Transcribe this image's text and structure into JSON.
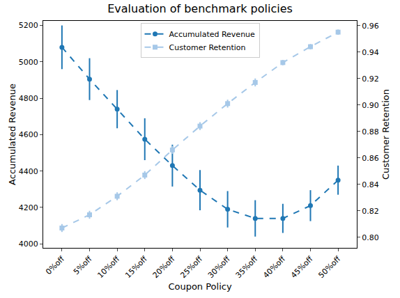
{
  "chart_data": {
    "type": "line",
    "title": "Evaluation of benchmark policies",
    "x_label": "Coupon Policy",
    "y_label": "Accumulated Revenue",
    "y2_label": "Customer Retention",
    "categories": [
      "0%off",
      "5%off",
      "10%off",
      "15%off",
      "20%off",
      "25%off",
      "30%off",
      "35%off",
      "40%off",
      "45%off",
      "50%off"
    ],
    "series": [
      {
        "name": "Accumulated Revenue",
        "color": "#1f77b4",
        "marker": "circle",
        "line_style": "dashed",
        "axis": "y",
        "values": [
          5080,
          4905,
          4740,
          4575,
          4430,
          4295,
          4190,
          4140,
          4140,
          4210,
          4350
        ],
        "error": [
          120,
          115,
          105,
          115,
          115,
          110,
          100,
          100,
          80,
          85,
          80
        ]
      },
      {
        "name": "Customer Retention",
        "color": "#a6c8e8",
        "marker": "square",
        "line_style": "dashed",
        "axis": "y2",
        "values": [
          0.807,
          0.817,
          0.831,
          0.847,
          0.866,
          0.884,
          0.901,
          0.917,
          0.932,
          0.944,
          0.955
        ],
        "error": [
          0.003,
          0.003,
          0.003,
          0.003,
          0.003,
          0.003,
          0.003,
          0.003,
          0.002,
          0.002,
          0.002
        ]
      }
    ],
    "ylim": [
      3978,
      5225
    ],
    "yticks": [
      4000,
      4200,
      4400,
      4600,
      4800,
      5000,
      5200
    ],
    "y2lim": [
      0.792,
      0.9635
    ],
    "y2ticks": [
      {
        "value": 0.8,
        "label": "0.80"
      },
      {
        "value": 0.82,
        "label": "0.82"
      },
      {
        "value": 0.84,
        "label": "0.84"
      },
      {
        "value": 0.86,
        "label": "0.86"
      },
      {
        "value": 0.88,
        "label": "0.88"
      },
      {
        "value": 0.9,
        "label": "0.90"
      },
      {
        "value": 0.92,
        "label": "0.92"
      },
      {
        "value": 0.94,
        "label": "0.94"
      },
      {
        "value": 0.96,
        "label": "0.96"
      }
    ],
    "grid": false,
    "legend": "upper center"
  }
}
